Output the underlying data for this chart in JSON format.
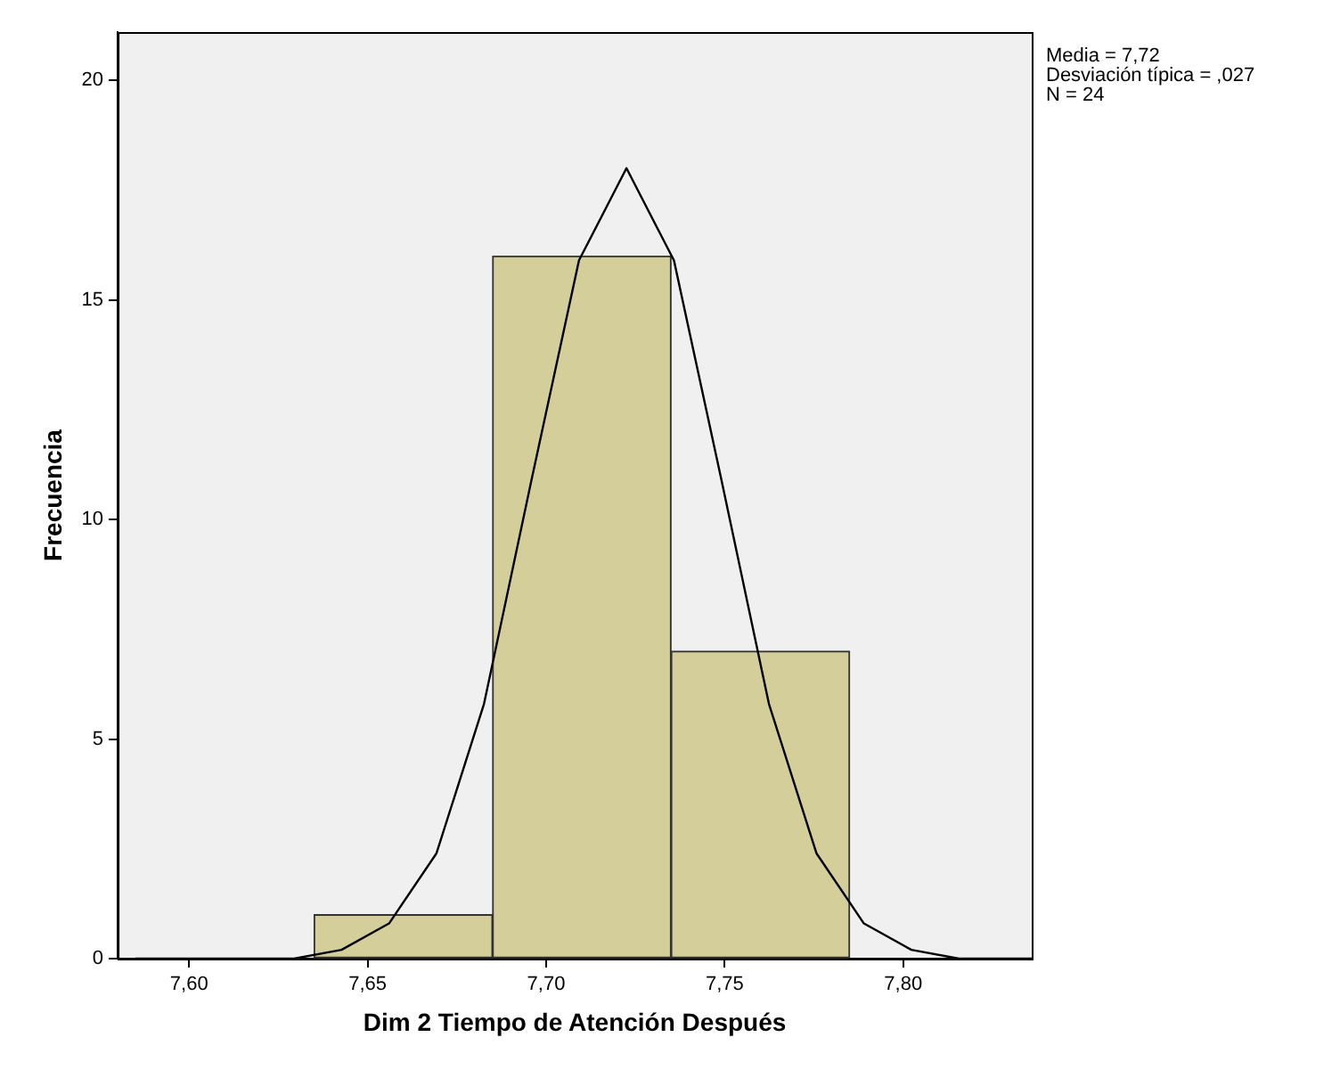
{
  "chart_data": {
    "type": "histogram",
    "xlabel": "Dim 2 Tiempo de Atención Después",
    "ylabel": "Frecuencia",
    "bins": [
      7.635,
      7.685,
      7.735,
      7.785
    ],
    "values": [
      1,
      16,
      7
    ],
    "color": "#d3ce9a",
    "xlim": [
      7.58,
      7.836
    ],
    "xticks": [
      {
        "value": 7.6,
        "label": "7,60"
      },
      {
        "value": 7.65,
        "label": "7,65"
      },
      {
        "value": 7.7,
        "label": "7,70"
      },
      {
        "value": 7.75,
        "label": "7,75"
      },
      {
        "value": 7.8,
        "label": "7,80"
      }
    ],
    "ylim": [
      0,
      21.1
    ],
    "yticks": [
      0,
      5,
      10,
      15,
      20
    ],
    "grid": false,
    "legend": false,
    "annotations": [
      "Media = 7,72",
      "Desviación típica = ,027",
      "N = 24"
    ],
    "series": [
      {
        "type": "line",
        "color": "#000000",
        "x": [
          7.585,
          7.6029,
          7.6161,
          7.6294,
          7.6427,
          7.656,
          7.6693,
          7.6826,
          7.6959,
          7.7092,
          7.7225,
          7.7358,
          7.7491,
          7.7624,
          7.7757,
          7.789,
          7.8023,
          7.8156,
          7.8289,
          7.836
        ],
        "values": [
          0,
          0,
          0,
          0,
          0.2,
          0.8,
          2.4,
          5.8,
          10.9,
          15.9,
          18,
          15.9,
          10.9,
          5.8,
          2.4,
          0.8,
          0.2,
          0,
          0,
          0
        ]
      }
    ]
  }
}
